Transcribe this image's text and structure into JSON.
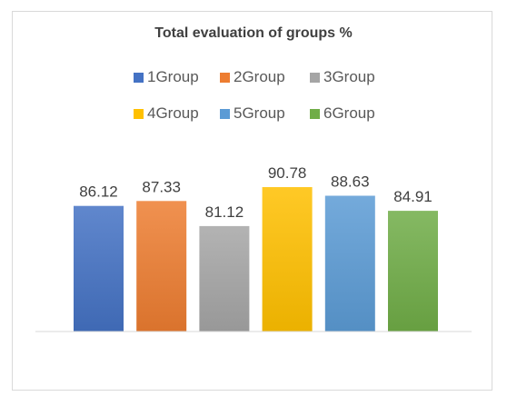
{
  "chart_data": {
    "type": "bar",
    "title": "Total evaluation of groups %",
    "xlabel": "",
    "ylabel": "",
    "ylim": [
      0,
      100
    ],
    "grid": false,
    "legend_position": "top",
    "series": [
      {
        "name": "1Group",
        "value": 86.12,
        "label": "86.12",
        "color": "#4472c4"
      },
      {
        "name": "2Group",
        "value": 87.33,
        "label": "87.33",
        "color": "#ed7d31"
      },
      {
        "name": "3Group",
        "value": 81.12,
        "label": "81.12",
        "color": "#a5a5a5"
      },
      {
        "name": "4Group",
        "value": 90.78,
        "label": "90.78",
        "color": "#ffc000"
      },
      {
        "name": "5Group",
        "value": 88.63,
        "label": "88.63",
        "color": "#5b9bd5"
      },
      {
        "name": "6Group",
        "value": 84.91,
        "label": "84.91",
        "color": "#70ad47"
      }
    ]
  }
}
